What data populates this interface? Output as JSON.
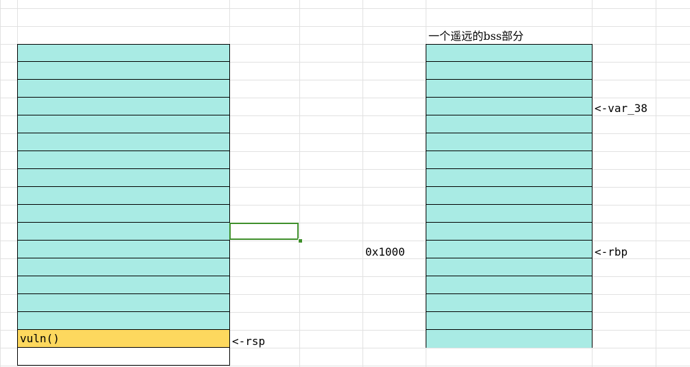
{
  "left_stack": {
    "filled_rows": 16,
    "highlight_label": "vuln()",
    "highlight_color": "#fdd85e",
    "fill_color": "#a9ebe4"
  },
  "right_stack": {
    "title": "一个遥远的bss部分",
    "rows": 17,
    "fill_color": "#a9ebe4"
  },
  "annotations": {
    "rsp": "<-rsp",
    "var_38": "<-var_38",
    "rbp": "<-rbp",
    "offset": "0x1000"
  },
  "selection_color": "#3f8f2b"
}
